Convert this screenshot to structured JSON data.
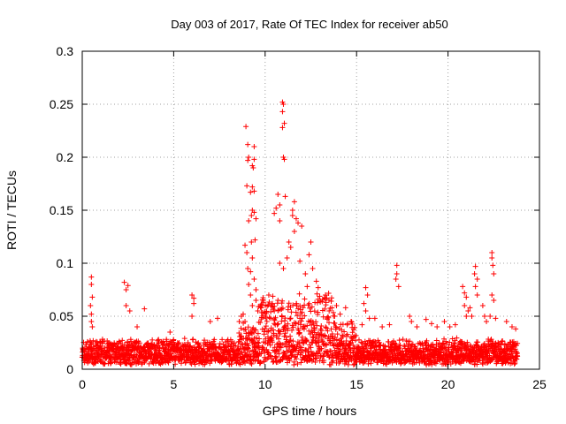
{
  "chart_data": {
    "type": "scatter",
    "title": "Day 003 of 2017, Rate Of TEC Index for receiver ab50",
    "xlabel": "GPS time / hours",
    "ylabel": "ROTI / TECUs",
    "xlim": [
      0,
      25
    ],
    "ylim": [
      0,
      0.3
    ],
    "x_ticks": [
      0,
      5,
      10,
      15,
      20,
      25
    ],
    "x_tick_labels": [
      "0",
      "5",
      "10",
      "15",
      "20",
      "25"
    ],
    "y_ticks": [
      0,
      0.05,
      0.1,
      0.15,
      0.2,
      0.25,
      0.3
    ],
    "y_tick_labels": [
      "0",
      "0.05",
      "0.1",
      "0.15",
      "0.2",
      "0.25",
      "0.3"
    ],
    "grid": true,
    "marker": "+",
    "color": "#ff0000",
    "series": [
      {
        "name": "ROTI",
        "baseline_density": "dense continuous cluster between 0.005 and 0.03 TECU/s from 0 to 24 h",
        "points": [
          [
            0.5,
            0.087
          ],
          [
            0.5,
            0.08
          ],
          [
            0.55,
            0.068
          ],
          [
            0.45,
            0.06
          ],
          [
            0.5,
            0.052
          ],
          [
            0.5,
            0.045
          ],
          [
            0.55,
            0.04
          ],
          [
            2.3,
            0.082
          ],
          [
            2.5,
            0.079
          ],
          [
            2.4,
            0.075
          ],
          [
            2.4,
            0.06
          ],
          [
            2.6,
            0.055
          ],
          [
            3.4,
            0.057
          ],
          [
            3.0,
            0.04
          ],
          [
            4.8,
            0.035
          ],
          [
            6.0,
            0.07
          ],
          [
            6.1,
            0.067
          ],
          [
            6.1,
            0.062
          ],
          [
            6.0,
            0.05
          ],
          [
            7.0,
            0.045
          ],
          [
            7.4,
            0.048
          ],
          [
            8.7,
            0.05
          ],
          [
            8.8,
            0.052
          ],
          [
            8.9,
            0.045
          ],
          [
            8.95,
            0.229
          ],
          [
            9.05,
            0.212
          ],
          [
            9.1,
            0.2
          ],
          [
            9.05,
            0.197
          ],
          [
            9.4,
            0.21
          ],
          [
            9.4,
            0.198
          ],
          [
            9.3,
            0.192
          ],
          [
            9.35,
            0.19
          ],
          [
            9.0,
            0.173
          ],
          [
            9.3,
            0.172
          ],
          [
            9.2,
            0.167
          ],
          [
            9.4,
            0.168
          ],
          [
            9.3,
            0.15
          ],
          [
            9.25,
            0.145
          ],
          [
            9.1,
            0.14
          ],
          [
            9.4,
            0.148
          ],
          [
            9.5,
            0.142
          ],
          [
            9.45,
            0.122
          ],
          [
            9.25,
            0.12
          ],
          [
            8.9,
            0.117
          ],
          [
            9.0,
            0.11
          ],
          [
            9.05,
            0.095
          ],
          [
            9.3,
            0.105
          ],
          [
            9.2,
            0.092
          ],
          [
            9.4,
            0.085
          ],
          [
            9.1,
            0.08
          ],
          [
            9.5,
            0.075
          ],
          [
            9.2,
            0.07
          ],
          [
            9.5,
            0.065
          ],
          [
            9.3,
            0.06
          ],
          [
            9.6,
            0.055
          ],
          [
            9.8,
            0.058
          ],
          [
            9.9,
            0.065
          ],
          [
            10.0,
            0.05
          ],
          [
            10.3,
            0.048
          ],
          [
            10.5,
            0.055
          ],
          [
            10.7,
            0.065
          ],
          [
            10.2,
            0.07
          ],
          [
            10.95,
            0.252
          ],
          [
            11.0,
            0.25
          ],
          [
            10.95,
            0.243
          ],
          [
            11.05,
            0.232
          ],
          [
            10.95,
            0.228
          ],
          [
            11.0,
            0.2
          ],
          [
            11.05,
            0.198
          ],
          [
            10.7,
            0.165
          ],
          [
            11.1,
            0.163
          ],
          [
            10.8,
            0.155
          ],
          [
            10.5,
            0.147
          ],
          [
            10.6,
            0.152
          ],
          [
            10.8,
            0.14
          ],
          [
            11.6,
            0.158
          ],
          [
            11.5,
            0.15
          ],
          [
            11.5,
            0.145
          ],
          [
            11.7,
            0.142
          ],
          [
            11.8,
            0.138
          ],
          [
            11.6,
            0.13
          ],
          [
            11.3,
            0.12
          ],
          [
            12.0,
            0.135
          ],
          [
            11.4,
            0.115
          ],
          [
            11.2,
            0.105
          ],
          [
            10.8,
            0.1
          ],
          [
            11.0,
            0.095
          ],
          [
            12.5,
            0.12
          ],
          [
            12.4,
            0.108
          ],
          [
            11.9,
            0.102
          ],
          [
            12.6,
            0.095
          ],
          [
            12.2,
            0.09
          ],
          [
            12.8,
            0.083
          ],
          [
            12.9,
            0.077
          ],
          [
            13.3,
            0.07
          ],
          [
            12.3,
            0.078
          ],
          [
            12.9,
            0.066
          ],
          [
            13.5,
            0.055
          ],
          [
            13.8,
            0.05
          ],
          [
            14.1,
            0.052
          ],
          [
            14.4,
            0.058
          ],
          [
            13.9,
            0.06
          ],
          [
            14.7,
            0.045
          ],
          [
            15.5,
            0.077
          ],
          [
            15.6,
            0.07
          ],
          [
            15.4,
            0.062
          ],
          [
            15.5,
            0.055
          ],
          [
            15.7,
            0.048
          ],
          [
            15.3,
            0.042
          ],
          [
            16.0,
            0.048
          ],
          [
            16.4,
            0.04
          ],
          [
            16.8,
            0.042
          ],
          [
            17.2,
            0.098
          ],
          [
            17.2,
            0.09
          ],
          [
            17.15,
            0.085
          ],
          [
            17.3,
            0.078
          ],
          [
            17.9,
            0.05
          ],
          [
            18.0,
            0.045
          ],
          [
            18.3,
            0.04
          ],
          [
            18.8,
            0.047
          ],
          [
            19.1,
            0.043
          ],
          [
            19.4,
            0.04
          ],
          [
            19.8,
            0.045
          ],
          [
            20.1,
            0.04
          ],
          [
            20.4,
            0.042
          ],
          [
            20.8,
            0.078
          ],
          [
            20.9,
            0.072
          ],
          [
            21.0,
            0.068
          ],
          [
            20.9,
            0.06
          ],
          [
            21.1,
            0.055
          ],
          [
            21.0,
            0.05
          ],
          [
            21.2,
            0.058
          ],
          [
            21.3,
            0.05
          ],
          [
            21.5,
            0.097
          ],
          [
            21.45,
            0.09
          ],
          [
            21.6,
            0.085
          ],
          [
            21.5,
            0.078
          ],
          [
            21.6,
            0.07
          ],
          [
            21.9,
            0.06
          ],
          [
            22.0,
            0.05
          ],
          [
            22.1,
            0.045
          ],
          [
            22.4,
            0.11
          ],
          [
            22.4,
            0.105
          ],
          [
            22.45,
            0.098
          ],
          [
            22.5,
            0.09
          ],
          [
            22.4,
            0.07
          ],
          [
            22.5,
            0.065
          ],
          [
            22.3,
            0.05
          ],
          [
            22.6,
            0.048
          ],
          [
            23.2,
            0.045
          ],
          [
            23.5,
            0.04
          ],
          [
            23.7,
            0.038
          ]
        ]
      }
    ]
  }
}
